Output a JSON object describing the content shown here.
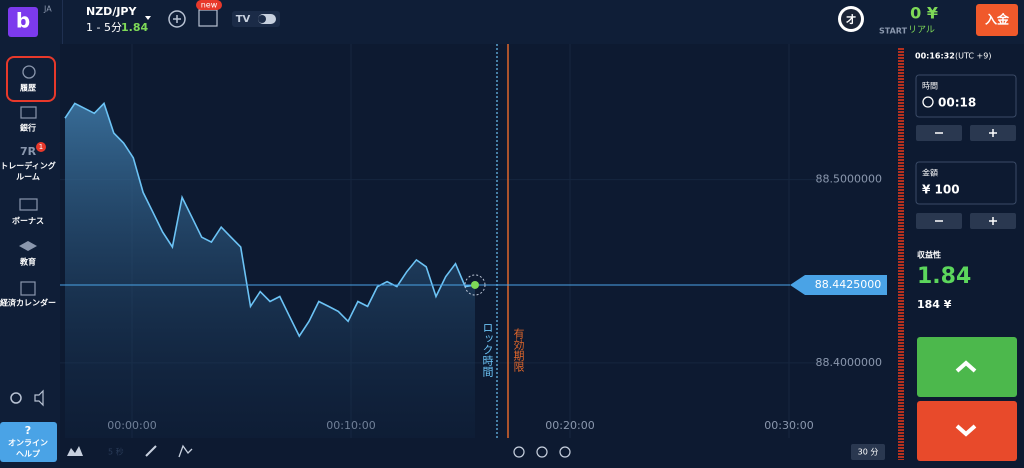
{
  "header": {
    "logo": "b",
    "locale": "JA",
    "pair": "NZD/JPY",
    "timeframe": "1 - 5分",
    "payout": "1.84",
    "new_badge": "new",
    "avatar": "オ",
    "balance": "0 ¥",
    "account_start": "START",
    "account_type": "リアル",
    "deposit": "入金"
  },
  "sidebar": {
    "items": [
      {
        "label": "履歴"
      },
      {
        "label": "銀行"
      },
      {
        "label": "トレーディング",
        "label2": "ルーム",
        "badge": "1"
      },
      {
        "label": "ボーナス"
      },
      {
        "label": "教育"
      },
      {
        "label": "経済カレンダー"
      }
    ],
    "help": {
      "icon": "?",
      "line1": "オンライン",
      "line2": "ヘルプ"
    }
  },
  "chart": {
    "ylim": [
      88.359,
      88.574
    ],
    "price_ticks": [
      {
        "value": 88.5,
        "label": "88.5000000"
      },
      {
        "value": 88.4,
        "label": "88.4000000"
      }
    ],
    "time_labels": [
      "00:00:00",
      "00:10:00",
      "00:20:00",
      "00:30:00"
    ],
    "prices": [
      88.5335,
      88.5416,
      88.5389,
      88.5362,
      88.5416,
      88.5254,
      88.52,
      88.5119,
      88.493,
      88.4822,
      88.4714,
      88.4632,
      88.4903,
      88.4795,
      88.4686,
      88.4659,
      88.4741,
      88.4686,
      88.4632,
      88.4308,
      88.4389,
      88.4335,
      88.4362,
      88.4254,
      88.4146,
      88.4227,
      88.4335,
      88.4308,
      88.4281,
      88.4227,
      88.4335,
      88.4308,
      88.4416,
      88.4443,
      88.4416,
      88.4497,
      88.4562,
      88.4524,
      88.4362,
      88.447,
      88.4541,
      88.4416,
      88.4425
    ],
    "current_price": {
      "value": 88.4425,
      "label": "88.4425000"
    },
    "lock_label": "ロック時間",
    "expiry_label": "有効期限",
    "resolution": "5 秒",
    "interval": "30 分"
  },
  "panel": {
    "clock": "00:16:32",
    "timezone": "(UTC +9)",
    "time": {
      "label": "時間",
      "value": "00:18"
    },
    "amount": {
      "label": "金額",
      "value": "¥ 100"
    },
    "profit": {
      "label": "収益性",
      "rate": "1.84",
      "amount": "184 ¥"
    }
  }
}
